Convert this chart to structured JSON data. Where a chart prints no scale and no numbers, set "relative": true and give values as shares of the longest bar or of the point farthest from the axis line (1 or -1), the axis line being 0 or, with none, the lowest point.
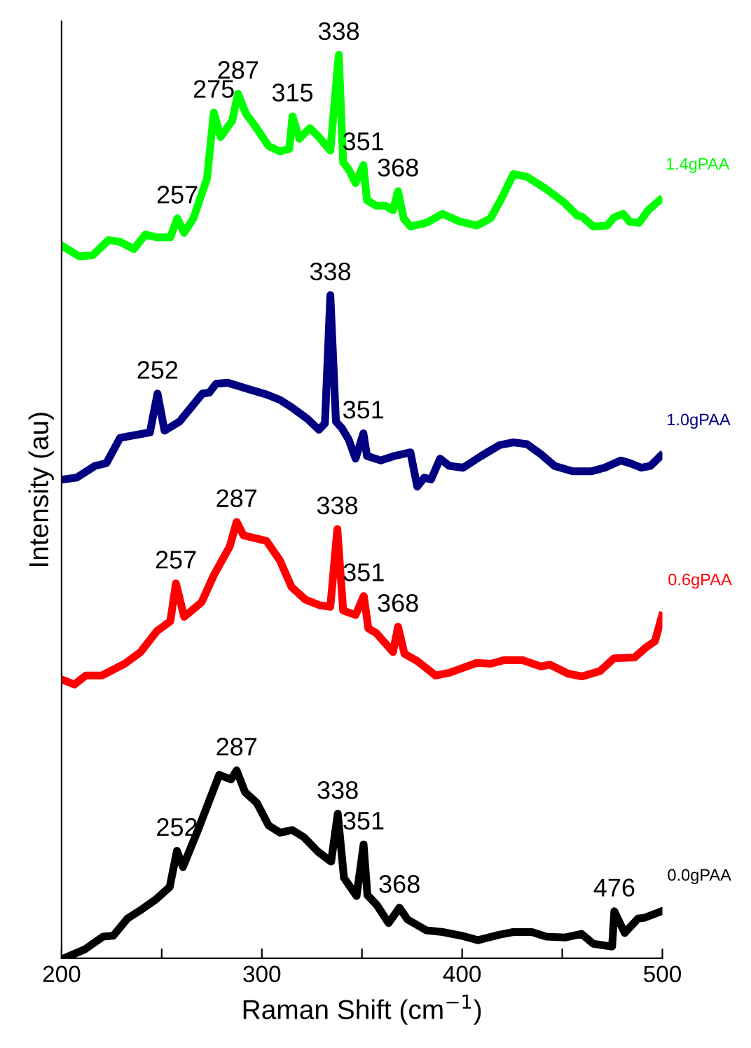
{
  "chart_data": {
    "type": "line",
    "relative": true,
    "xlabel": "Raman Shift (cm$^{−1}$)",
    "ylabel": "Intensity (au)",
    "xlim": [
      200,
      500
    ],
    "xticks": [
      200,
      {
        "value": 250,
        "label": null
      },
      300,
      {
        "value": 350,
        "label": null
      },
      400,
      {
        "value": 450,
        "label": null
      },
      500
    ],
    "grid": false,
    "legend": false,
    "marker": "none",
    "line_style": "solid",
    "tick_labels": "x",
    "series": [
      {
        "name": "1.4gPAA",
        "color": "#00ff00",
        "x": [
          200.7,
          208.7,
          215.5,
          223.5,
          229.2,
          236.1,
          241.8,
          247.5,
          254.3,
          257.8,
          261.2,
          265.8,
          272.6,
          276.0,
          279.4,
          285.2,
          288.1,
          292.0,
          295.4,
          303.4,
          309.1,
          313.7,
          315.3,
          318.7,
          324.0,
          328.5,
          334.2,
          338.4,
          340.6,
          343.4,
          346.8,
          350.7,
          352.5,
          357.1,
          361.6,
          365.5,
          368.0,
          370.8,
          374.2,
          382.2,
          390.2,
          398.2,
          407.3,
          414.2,
          419.9,
          425.6,
          432.4,
          441.6,
          450.7,
          457.5,
          459.8,
          465.5,
          472.4,
          475.8,
          480.4,
          483.8,
          488.4,
          492.9,
          498.6
        ],
        "values": [
          0.788,
          0.777,
          0.778,
          0.795,
          0.793,
          0.785,
          0.801,
          0.798,
          0.798,
          0.819,
          0.803,
          0.819,
          0.863,
          0.936,
          0.909,
          0.927,
          0.957,
          0.935,
          0.925,
          0.899,
          0.893,
          0.896,
          0.932,
          0.907,
          0.919,
          0.909,
          0.894,
          1.0,
          0.881,
          0.873,
          0.858,
          0.878,
          0.839,
          0.833,
          0.833,
          0.828,
          0.849,
          0.819,
          0.81,
          0.814,
          0.824,
          0.816,
          0.811,
          0.819,
          0.842,
          0.868,
          0.865,
          0.852,
          0.837,
          0.822,
          0.821,
          0.81,
          0.811,
          0.82,
          0.824,
          0.815,
          0.814,
          0.828,
          0.839
        ]
      },
      {
        "name": "1.0gPAA",
        "color": "#000080",
        "x": [
          200.7,
          207.5,
          216.7,
          222.4,
          229.2,
          244.1,
          247.9,
          251.4,
          258.9,
          270.3,
          273.7,
          277.2,
          282.9,
          293.2,
          302.3,
          309.1,
          314.8,
          322.8,
          328.5,
          331.5,
          334.2,
          337.0,
          339.9,
          343.4,
          346.8,
          350.7,
          352.5,
          359.4,
          366.2,
          374.2,
          377.6,
          381.1,
          384.5,
          389.0,
          393.6,
          400.5,
          409.6,
          418.7,
          425.6,
          432.4,
          439.3,
          446.1,
          455.2,
          464.4,
          471.2,
          479.2,
          483.8,
          489.5,
          494.1,
          499.1
        ],
        "values": [
          0.53,
          0.532,
          0.545,
          0.548,
          0.576,
          0.582,
          0.625,
          0.584,
          0.594,
          0.625,
          0.626,
          0.636,
          0.637,
          0.63,
          0.624,
          0.618,
          0.61,
          0.597,
          0.585,
          0.592,
          0.734,
          0.594,
          0.587,
          0.574,
          0.553,
          0.581,
          0.556,
          0.551,
          0.556,
          0.56,
          0.522,
          0.532,
          0.53,
          0.553,
          0.545,
          0.543,
          0.556,
          0.568,
          0.571,
          0.569,
          0.558,
          0.545,
          0.539,
          0.539,
          0.543,
          0.551,
          0.548,
          0.543,
          0.545,
          0.556
        ]
      },
      {
        "name": "0.6gPAA",
        "color": "#ff0000",
        "x": [
          200.7,
          206.4,
          212.1,
          220.1,
          231.5,
          239.5,
          247.5,
          254.3,
          257.1,
          261.2,
          269.9,
          276.0,
          284.0,
          287.4,
          290.9,
          302.3,
          309.1,
          314.8,
          321.7,
          328.5,
          334.2,
          337.7,
          340.6,
          346.8,
          350.9,
          353.2,
          357.1,
          365.5,
          368.0,
          371.2,
          377.6,
          386.8,
          393.6,
          407.3,
          414.2,
          421.0,
          430.1,
          439.3,
          443.8,
          453.0,
          459.8,
          468.9,
          475.8,
          486.1,
          491.8,
          496.3,
          499.8
        ],
        "values": [
          0.308,
          0.303,
          0.313,
          0.313,
          0.326,
          0.339,
          0.362,
          0.373,
          0.415,
          0.378,
          0.394,
          0.424,
          0.456,
          0.483,
          0.468,
          0.462,
          0.44,
          0.411,
          0.397,
          0.391,
          0.389,
          0.475,
          0.385,
          0.38,
          0.401,
          0.365,
          0.36,
          0.339,
          0.367,
          0.337,
          0.329,
          0.313,
          0.316,
          0.327,
          0.326,
          0.33,
          0.33,
          0.323,
          0.325,
          0.315,
          0.312,
          0.318,
          0.332,
          0.333,
          0.344,
          0.351,
          0.379
        ]
      },
      {
        "name": "0.0gPAA",
        "color": "#000000",
        "x": [
          201.2,
          211.7,
          220.7,
          225.8,
          232.9,
          239.9,
          247.0,
          254.0,
          257.6,
          260.6,
          268.1,
          274.0,
          278.7,
          284.6,
          287.4,
          291.6,
          297.5,
          303.4,
          309.2,
          315.1,
          321.0,
          328.0,
          334.6,
          337.9,
          341.0,
          347.3,
          350.8,
          352.7,
          357.4,
          363.3,
          368.7,
          372.7,
          382.1,
          390.3,
          399.7,
          407.9,
          418.5,
          425.5,
          434.9,
          442.0,
          451.4,
          459.6,
          465.5,
          474.9,
          476.0,
          481.2,
          487.8,
          491.3,
          499.5
        ],
        "values": [
          0.0,
          0.01,
          0.024,
          0.025,
          0.044,
          0.054,
          0.065,
          0.079,
          0.119,
          0.101,
          0.142,
          0.176,
          0.203,
          0.198,
          0.208,
          0.184,
          0.172,
          0.147,
          0.139,
          0.142,
          0.134,
          0.118,
          0.107,
          0.16,
          0.089,
          0.069,
          0.126,
          0.07,
          0.059,
          0.039,
          0.056,
          0.043,
          0.031,
          0.029,
          0.025,
          0.02,
          0.026,
          0.029,
          0.029,
          0.024,
          0.023,
          0.027,
          0.016,
          0.013,
          0.052,
          0.028,
          0.044,
          0.045,
          0.052
        ]
      }
    ],
    "annotations": [
      {
        "text": "257",
        "x": 257.8,
        "y": 0.819
      },
      {
        "text": "275",
        "x": 276.0,
        "y": 0.936
      },
      {
        "text": "287",
        "x": 288.1,
        "y": 0.957
      },
      {
        "text": "315",
        "x": 315.3,
        "y": 0.932
      },
      {
        "text": "338",
        "x": 338.4,
        "y": 1.0
      },
      {
        "text": "351",
        "x": 350.7,
        "y": 0.878
      },
      {
        "text": "368",
        "x": 368.0,
        "y": 0.849
      },
      {
        "text": "252",
        "x": 247.9,
        "y": 0.625
      },
      {
        "text": "338",
        "x": 334.2,
        "y": 0.734
      },
      {
        "text": "351",
        "x": 350.7,
        "y": 0.581
      },
      {
        "text": "257",
        "x": 257.1,
        "y": 0.415
      },
      {
        "text": "287",
        "x": 287.4,
        "y": 0.483
      },
      {
        "text": "338",
        "x": 337.7,
        "y": 0.475
      },
      {
        "text": "351",
        "x": 350.9,
        "y": 0.401
      },
      {
        "text": "368",
        "x": 368.0,
        "y": 0.367
      },
      {
        "text": "252",
        "x": 257.6,
        "y": 0.119
      },
      {
        "text": "287",
        "x": 287.4,
        "y": 0.208
      },
      {
        "text": "338",
        "x": 337.9,
        "y": 0.16
      },
      {
        "text": "351",
        "x": 350.8,
        "y": 0.126
      },
      {
        "text": "368",
        "x": 368.7,
        "y": 0.056
      },
      {
        "text": "476",
        "x": 476.0,
        "y": 0.052
      }
    ]
  }
}
